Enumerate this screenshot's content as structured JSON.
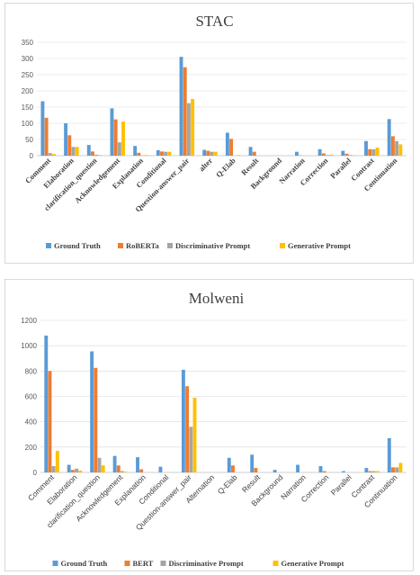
{
  "chart_data": [
    {
      "type": "bar",
      "title": "STAC",
      "categories": [
        "Comment",
        "Elaboration",
        "clarification_question",
        "Acknowledgement",
        "Explanation",
        "Conditional",
        "Question-answer_pair",
        "alter",
        "Q-Elab",
        "Result",
        "Background",
        "Narration",
        "Correction",
        "Parallel",
        "Contrast",
        "Continuation"
      ],
      "ylim": [
        0,
        350
      ],
      "yticks": [
        0,
        50,
        100,
        150,
        200,
        250,
        300,
        350
      ],
      "grid": true,
      "legend_position": "bottom",
      "series": [
        {
          "name": "Ground Truth",
          "color": "#5B9BD5",
          "values": [
            168,
            100,
            33,
            146,
            30,
            17,
            305,
            18,
            71,
            27,
            0,
            12,
            20,
            15,
            45,
            113
          ]
        },
        {
          "name": "RoBERTa",
          "color": "#ED7D31",
          "values": [
            117,
            63,
            13,
            112,
            9,
            13,
            273,
            15,
            52,
            12,
            0,
            1,
            7,
            6,
            20,
            60
          ]
        },
        {
          "name": "Discriminative Prompt",
          "color": "#A5A5A5",
          "values": [
            8,
            27,
            3,
            41,
            1,
            12,
            162,
            12,
            0,
            0,
            0,
            0,
            2,
            2,
            20,
            45
          ]
        },
        {
          "name": "Generative Prompt",
          "color": "#FFC000",
          "values": [
            5,
            27,
            2,
            105,
            2,
            12,
            175,
            12,
            2,
            0,
            0,
            0,
            3,
            1,
            25,
            35
          ]
        }
      ]
    },
    {
      "type": "bar",
      "title": "Molweni",
      "categories": [
        "Comment",
        "Elaboration",
        "clarification_question",
        "Acknowledgement",
        "Explanation",
        "Conditional",
        "Question-answer_pair",
        "Alternation",
        "Q-Elab",
        "Result",
        "Background",
        "Narration",
        "Correction",
        "Parallel",
        "Contrast",
        "Continuation"
      ],
      "ylim": [
        0,
        1200
      ],
      "yticks": [
        0,
        200,
        400,
        600,
        800,
        1000,
        1200
      ],
      "grid": true,
      "legend_position": "bottom",
      "series": [
        {
          "name": "Ground Truth",
          "color": "#5B9BD5",
          "values": [
            1080,
            60,
            955,
            130,
            120,
            45,
            810,
            0,
            115,
            140,
            20,
            60,
            50,
            10,
            35,
            270
          ]
        },
        {
          "name": "BERT",
          "color": "#ED7D31",
          "values": [
            800,
            20,
            825,
            55,
            25,
            0,
            680,
            0,
            55,
            35,
            0,
            0,
            10,
            0,
            10,
            40
          ]
        },
        {
          "name": "Discriminative Prompt",
          "color": "#A5A5A5",
          "values": [
            50,
            30,
            115,
            10,
            0,
            0,
            360,
            0,
            0,
            0,
            0,
            0,
            0,
            0,
            10,
            40
          ]
        },
        {
          "name": "Generative Prompt",
          "color": "#FFC000",
          "values": [
            170,
            15,
            55,
            5,
            0,
            0,
            590,
            0,
            0,
            0,
            0,
            0,
            0,
            0,
            10,
            75
          ]
        }
      ]
    }
  ]
}
